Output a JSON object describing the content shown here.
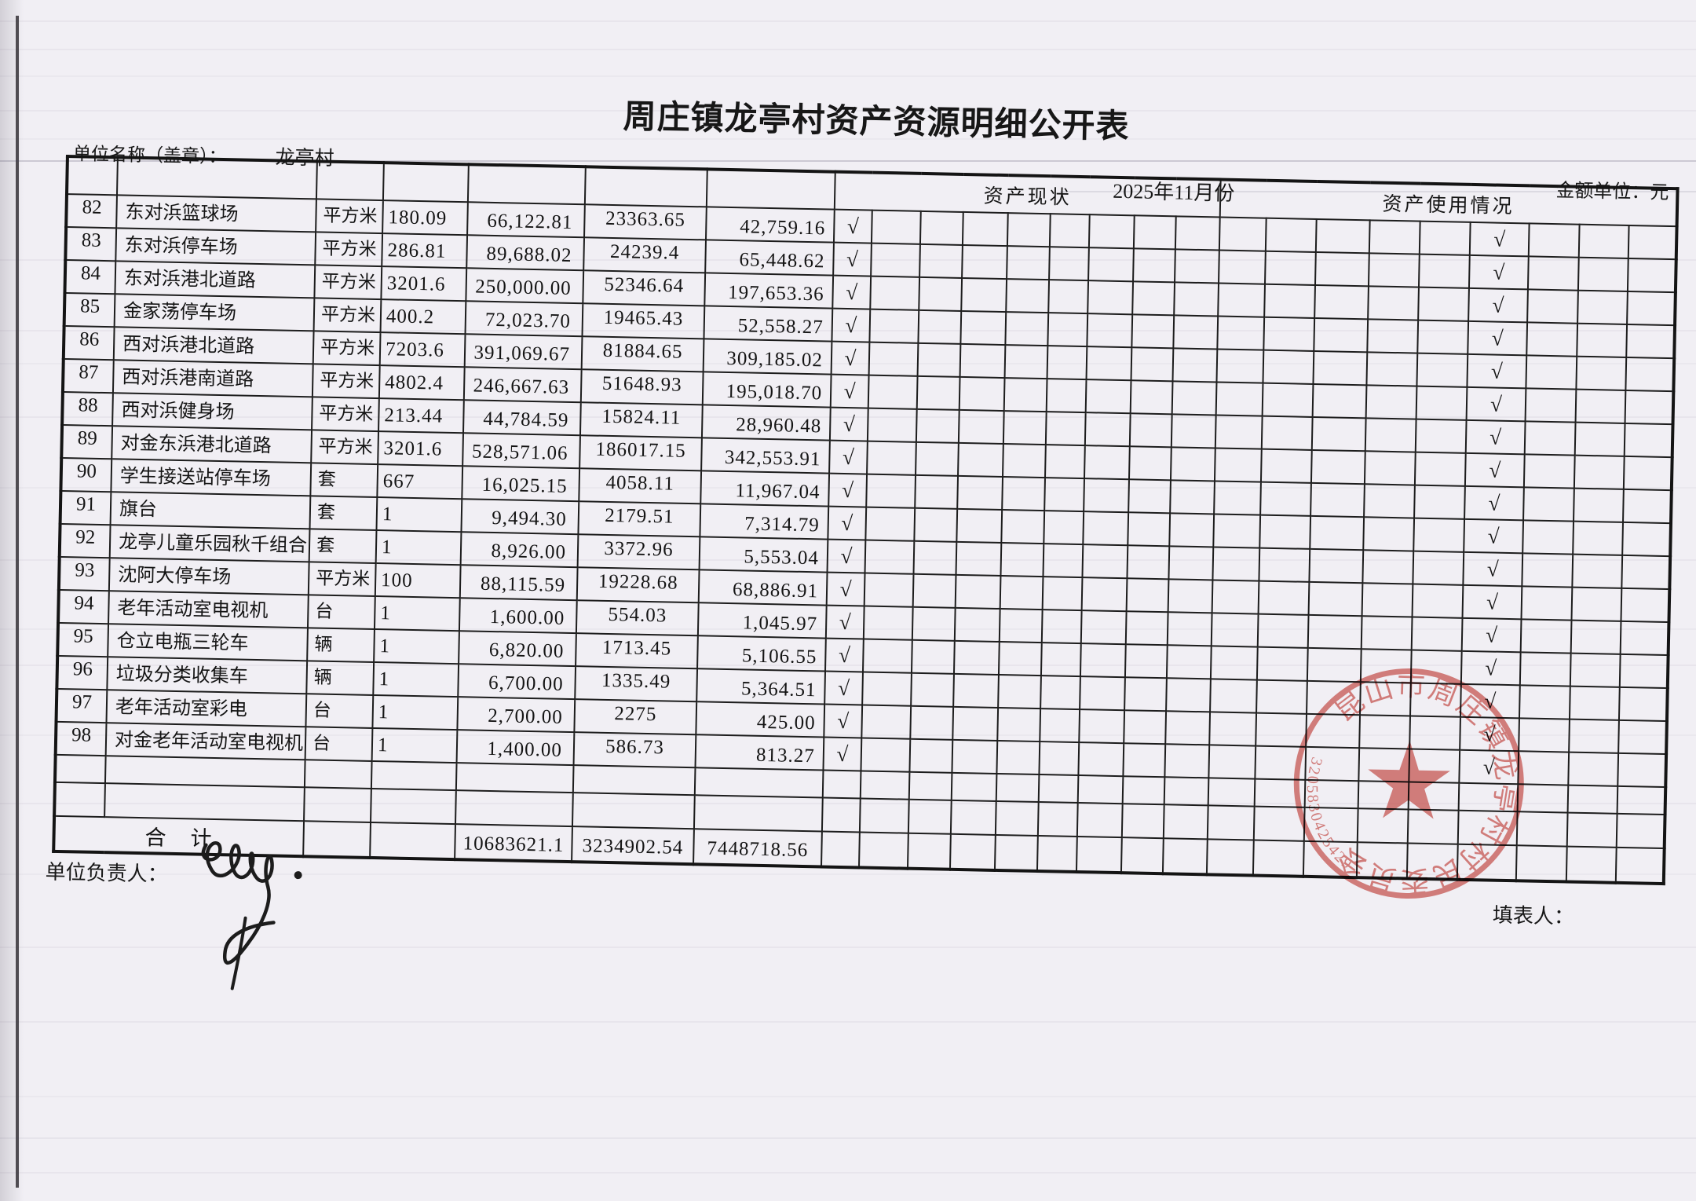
{
  "page": {
    "title": "周庄镇龙亭村资产资源明细公开表",
    "unit_label": "单位名称（盖章）：",
    "unit_name": "龙亭村",
    "period": "2025年11月份",
    "amount_unit_label": "金额单位：元",
    "responsible_label": "单位负责人：",
    "preparer_label": "填表人：",
    "check_glyph": "√"
  },
  "table": {
    "status_header": "资产现状",
    "usage_header": "资产使用情况",
    "columns": {
      "status_subcols": 9,
      "usage_subcols": 9,
      "status_check_index": 0,
      "usage_check_index": 5
    },
    "rows": [
      {
        "no": "82",
        "name": "东对浜篮球场",
        "unit": "平方米",
        "qty": "180.09",
        "original": "66,122.81",
        "depreciation": "23363.65",
        "net": "42,759.16",
        "status_check": true,
        "usage_check": true
      },
      {
        "no": "83",
        "name": "东对浜停车场",
        "unit": "平方米",
        "qty": "286.81",
        "original": "89,688.02",
        "depreciation": "24239.4",
        "net": "65,448.62",
        "status_check": true,
        "usage_check": true
      },
      {
        "no": "84",
        "name": "东对浜港北道路",
        "unit": "平方米",
        "qty": "3201.6",
        "original": "250,000.00",
        "depreciation": "52346.64",
        "net": "197,653.36",
        "status_check": true,
        "usage_check": true
      },
      {
        "no": "85",
        "name": "金家荡停车场",
        "unit": "平方米",
        "qty": "400.2",
        "original": "72,023.70",
        "depreciation": "19465.43",
        "net": "52,558.27",
        "status_check": true,
        "usage_check": true
      },
      {
        "no": "86",
        "name": "西对浜港北道路",
        "unit": "平方米",
        "qty": "7203.6",
        "original": "391,069.67",
        "depreciation": "81884.65",
        "net": "309,185.02",
        "status_check": true,
        "usage_check": true
      },
      {
        "no": "87",
        "name": "西对浜港南道路",
        "unit": "平方米",
        "qty": "4802.4",
        "original": "246,667.63",
        "depreciation": "51648.93",
        "net": "195,018.70",
        "status_check": true,
        "usage_check": true
      },
      {
        "no": "88",
        "name": "西对浜健身场",
        "unit": "平方米",
        "qty": "213.44",
        "original": "44,784.59",
        "depreciation": "15824.11",
        "net": "28,960.48",
        "status_check": true,
        "usage_check": true
      },
      {
        "no": "89",
        "name": "对金东浜港北道路",
        "unit": "平方米",
        "qty": "3201.6",
        "original": "528,571.06",
        "depreciation": "186017.15",
        "net": "342,553.91",
        "status_check": true,
        "usage_check": true
      },
      {
        "no": "90",
        "name": "学生接送站停车场",
        "unit": "套",
        "qty": "667",
        "original": "16,025.15",
        "depreciation": "4058.11",
        "net": "11,967.04",
        "status_check": true,
        "usage_check": true
      },
      {
        "no": "91",
        "name": "旗台",
        "unit": "套",
        "qty": "1",
        "original": "9,494.30",
        "depreciation": "2179.51",
        "net": "7,314.79",
        "status_check": true,
        "usage_check": true
      },
      {
        "no": "92",
        "name": "龙亭儿童乐园秋千组合",
        "unit": "套",
        "qty": "1",
        "original": "8,926.00",
        "depreciation": "3372.96",
        "net": "5,553.04",
        "status_check": true,
        "usage_check": true
      },
      {
        "no": "93",
        "name": "沈阿大停车场",
        "unit": "平方米",
        "qty": "100",
        "original": "88,115.59",
        "depreciation": "19228.68",
        "net": "68,886.91",
        "status_check": true,
        "usage_check": true
      },
      {
        "no": "94",
        "name": "老年活动室电视机",
        "unit": "台",
        "qty": "1",
        "original": "1,600.00",
        "depreciation": "554.03",
        "net": "1,045.97",
        "status_check": true,
        "usage_check": true
      },
      {
        "no": "95",
        "name": "仓立电瓶三轮车",
        "unit": "辆",
        "qty": "1",
        "original": "6,820.00",
        "depreciation": "1713.45",
        "net": "5,106.55",
        "status_check": true,
        "usage_check": true
      },
      {
        "no": "96",
        "name": "垃圾分类收集车",
        "unit": "辆",
        "qty": "1",
        "original": "6,700.00",
        "depreciation": "1335.49",
        "net": "5,364.51",
        "status_check": true,
        "usage_check": true
      },
      {
        "no": "97",
        "name": "老年活动室彩电",
        "unit": "台",
        "qty": "1",
        "original": "2,700.00",
        "depreciation": "2275",
        "net": "425.00",
        "status_check": true,
        "usage_check": true
      },
      {
        "no": "98",
        "name": "对金老年活动室电视机",
        "unit": "台",
        "qty": "1",
        "original": "1,400.00",
        "depreciation": "586.73",
        "net": "813.27",
        "status_check": true,
        "usage_check": true
      }
    ],
    "empty_row_count": 2,
    "total_row": {
      "label": "合　计",
      "original": "10683621.1",
      "depreciation": "3234902.54",
      "net": "7448718.56"
    }
  },
  "stamp": {
    "organization": "昆山市周庄镇龙亭村村民委员会",
    "code": "3205830425429",
    "color": "#c4504c"
  }
}
